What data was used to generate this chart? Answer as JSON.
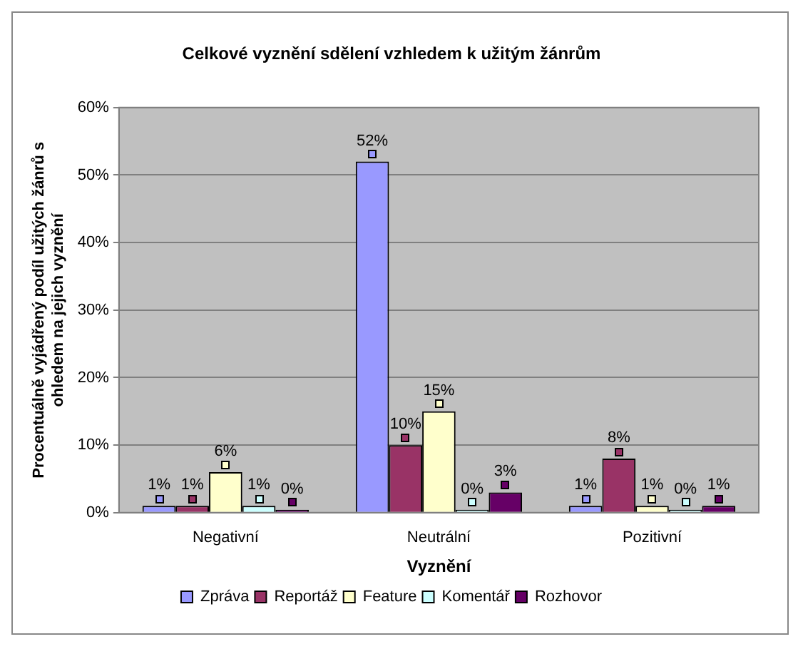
{
  "chart_data": {
    "type": "bar",
    "title": "Celkové vyznění sdělení vzhledem k užitým žánrům",
    "xlabel": "Vyznění",
    "ylabel": "Procentuálně vyjádřený podíl užitých žánrů s ohledem na jejich vyznění",
    "categories": [
      "Negativní",
      "Neutrální",
      "Pozitivní"
    ],
    "series": [
      {
        "name": "Zpráva",
        "color": "#9999ff",
        "values": [
          1,
          52,
          1
        ],
        "value_labels": [
          "1%",
          "52%",
          "1%"
        ]
      },
      {
        "name": "Reportáž",
        "color": "#993366",
        "values": [
          1,
          10,
          8
        ],
        "value_labels": [
          "1%",
          "10%",
          "8%"
        ]
      },
      {
        "name": "Feature",
        "color": "#ffffcc",
        "values": [
          6,
          15,
          1
        ],
        "value_labels": [
          "6%",
          "15%",
          "1%"
        ]
      },
      {
        "name": "Komentář",
        "color": "#ccffff",
        "values": [
          1,
          0,
          0
        ],
        "value_labels": [
          "1%",
          "0%",
          "0%"
        ]
      },
      {
        "name": "Rozhovor",
        "color": "#660066",
        "values": [
          0,
          3,
          1
        ],
        "value_labels": [
          "0%",
          "3%",
          "1%"
        ]
      }
    ],
    "ylim": [
      0,
      60
    ],
    "yticks": [
      {
        "value": 0,
        "label": "0%"
      },
      {
        "value": 10,
        "label": "10%"
      },
      {
        "value": 20,
        "label": "20%"
      },
      {
        "value": 30,
        "label": "30%"
      },
      {
        "value": 40,
        "label": "40%"
      },
      {
        "value": 50,
        "label": "50%"
      },
      {
        "value": 60,
        "label": "60%"
      }
    ],
    "grid": "y",
    "legend": "bottom"
  }
}
